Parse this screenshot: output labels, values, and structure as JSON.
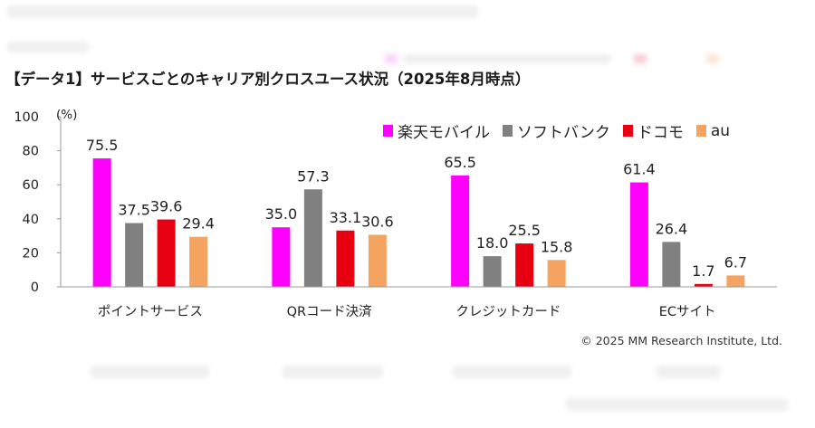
{
  "title": "【データ1】サービスごとのキャリア別クロスユース状況（2025年8月時点）",
  "copyright": "© 2025 MM Research Institute, Ltd.",
  "chart_data": {
    "type": "bar",
    "title": "【データ1】サービスごとのキャリア別クロスユース状況（2025年8月時点）",
    "ylabel": "(%)",
    "xlabel": "",
    "ylim": [
      0,
      100
    ],
    "yticks": [
      "0",
      "20",
      "40",
      "60",
      "80",
      "100"
    ],
    "grid": false,
    "legend_position": "top-right",
    "categories": [
      "ポイントサービス",
      "QRコード決済",
      "クレジットカード",
      "ECサイト"
    ],
    "series": [
      {
        "name": "楽天モバイル",
        "color": "#ff00ff",
        "values": [
          75.5,
          35.0,
          65.5,
          61.4
        ],
        "labels": [
          "75.5",
          "35.0",
          "65.5",
          "61.4"
        ]
      },
      {
        "name": "ソフトバンク",
        "color": "#808080",
        "values": [
          37.5,
          57.3,
          18.0,
          26.4
        ],
        "labels": [
          "37.5",
          "57.3",
          "18.0",
          "26.4"
        ]
      },
      {
        "name": "ドコモ",
        "color": "#e60012",
        "values": [
          39.6,
          33.1,
          25.5,
          1.7
        ],
        "labels": [
          "39.6",
          "33.1",
          "25.5",
          "1.7"
        ]
      },
      {
        "name": "au",
        "color": "#f4a460",
        "values": [
          29.4,
          30.6,
          15.8,
          6.7
        ],
        "labels": [
          "29.4",
          "30.6",
          "15.8",
          "6.7"
        ]
      }
    ]
  }
}
